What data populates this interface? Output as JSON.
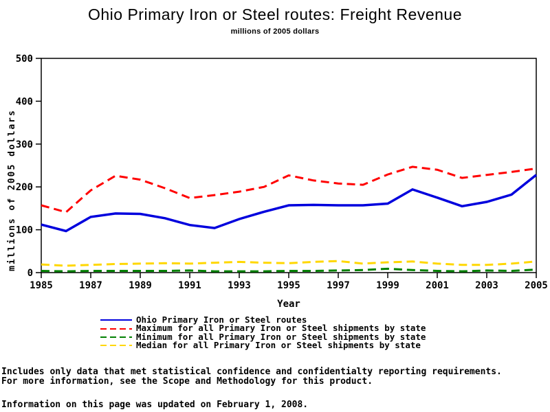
{
  "title": "Ohio Primary Iron or Steel routes: Freight Revenue",
  "subtitle": "millions of 2005 dollars",
  "chart_data": {
    "type": "line",
    "x": [
      1985,
      1986,
      1987,
      1988,
      1989,
      1990,
      1991,
      1992,
      1993,
      1994,
      1995,
      1996,
      1997,
      1998,
      1999,
      2000,
      2001,
      2002,
      2003,
      2004,
      2005
    ],
    "xticks": [
      1985,
      1987,
      1989,
      1991,
      1993,
      1995,
      1997,
      1999,
      2001,
      2003,
      2005
    ],
    "yticks": [
      0,
      100,
      200,
      300,
      400,
      500
    ],
    "ylim": [
      0,
      500
    ],
    "xlabel": "Year",
    "ylabel": "millions of 2005 dollars",
    "grid": false,
    "legend_position": "bottom",
    "frame": true,
    "series": [
      {
        "name": "Ohio Primary Iron or Steel routes",
        "color": "#0000dd",
        "dash": "solid",
        "values": [
          112,
          97,
          130,
          138,
          137,
          127,
          111,
          104,
          125,
          142,
          157,
          158,
          157,
          157,
          161,
          194,
          175,
          155,
          165,
          182,
          228
        ]
      },
      {
        "name": "Maximum for all Primary Iron or Steel shipments by state",
        "color": "#ff0000",
        "dash": "dashed",
        "values": [
          157,
          141,
          192,
          226,
          217,
          197,
          174,
          181,
          189,
          200,
          227,
          215,
          208,
          205,
          229,
          247,
          240,
          221,
          228,
          235,
          243
        ]
      },
      {
        "name": "Minimum for all Primary Iron or Steel shipments by state",
        "color": "#008000",
        "dash": "dashed",
        "values": [
          4,
          3,
          4,
          4,
          4,
          4,
          5,
          3,
          3,
          3,
          4,
          4,
          5,
          6,
          9,
          6,
          4,
          3,
          5,
          4,
          7
        ]
      },
      {
        "name": "Median for all Primary Iron or Steel shipments by state",
        "color": "#ffd700",
        "dash": "dashed",
        "values": [
          19,
          16,
          18,
          20,
          21,
          22,
          21,
          23,
          25,
          23,
          22,
          25,
          27,
          21,
          24,
          26,
          21,
          18,
          18,
          21,
          26
        ]
      }
    ]
  },
  "footnotes": {
    "line1": "Includes only data that met statistical confidence and confidentialty reporting requirements.",
    "line2": "For more information, see the Scope and Methodology for this product.",
    "line3": "Information on this page was updated on February 1, 2008."
  }
}
